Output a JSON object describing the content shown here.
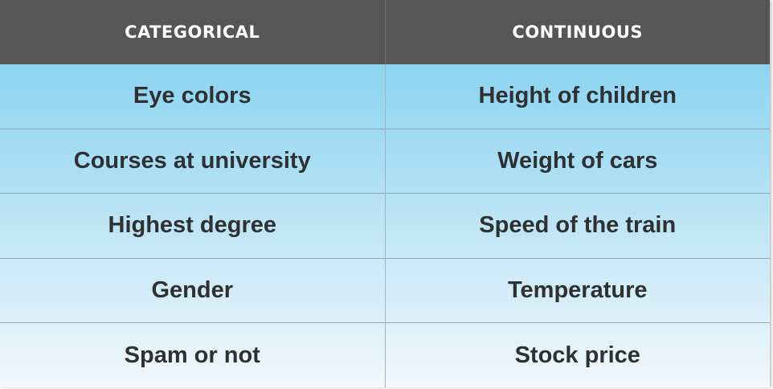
{
  "table": {
    "headers": [
      "CATEGORICAL",
      "CONTINUOUS"
    ],
    "rows": [
      [
        "Eye colors",
        "Height of children"
      ],
      [
        "Courses at university",
        "Weight of cars"
      ],
      [
        "Highest degree",
        "Speed of the train"
      ],
      [
        "Gender",
        "Temperature"
      ],
      [
        "Spam or not",
        "Stock price"
      ]
    ]
  }
}
